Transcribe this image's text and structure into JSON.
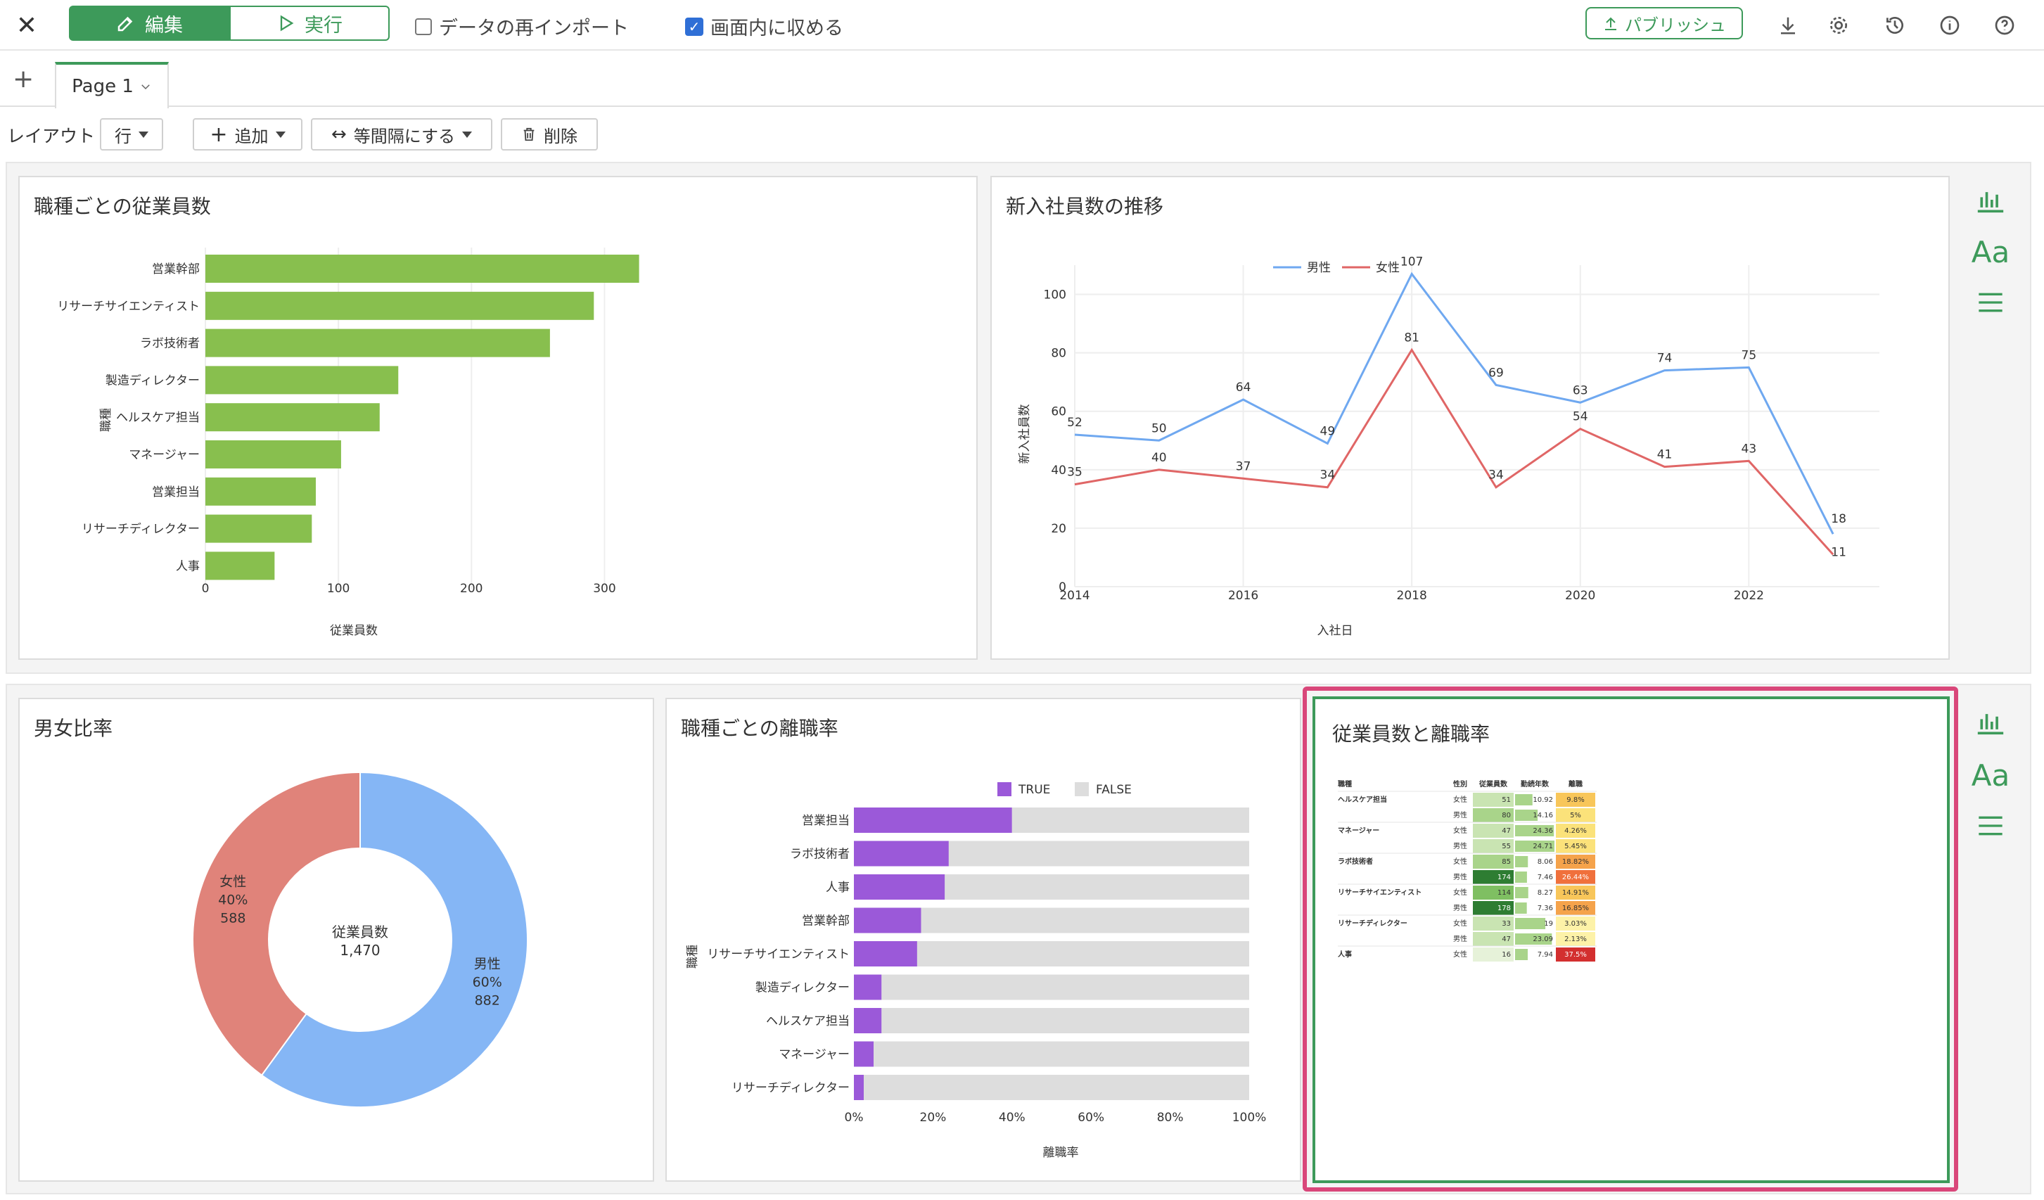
{
  "topbar": {
    "edit_label": "編集",
    "run_label": "実行",
    "reimport_label": "データの再インポート",
    "fit_label": "画面内に収める",
    "publish_label": "パブリッシュ"
  },
  "tabs": {
    "add": "+",
    "page1": "Page 1"
  },
  "layoutbar": {
    "layout_label": "レイアウト",
    "row_label": "行",
    "add_label": "追加",
    "equal_label": "等間隔にする",
    "delete_label": "削除"
  },
  "panels": {
    "p1_title": "職種ごとの従業員数",
    "p2_title": "新入社員数の推移",
    "p3_title": "男女比率",
    "p4_title": "職種ごとの離職率",
    "p5_title": "従業員数と離職率"
  },
  "sidebar": {
    "font_icon_label": "Aa"
  },
  "colors": {
    "green": "#3d9a5a",
    "bar_green": "#88bf4e",
    "male": "#6fa8f0",
    "female": "#e06666",
    "donut_male": "#85b6f5",
    "donut_female": "#e0837a",
    "purple": "#9b59d9",
    "gray": "#dddddd",
    "highlight": "#d9477a"
  },
  "chart_data": [
    {
      "type": "bar",
      "orientation": "horizontal",
      "title": "職種ごとの従業員数",
      "xlabel": "従業員数",
      "ylabel": "職種",
      "categories": [
        "営業幹部",
        "リサーチサイエンティスト",
        "ラボ技術者",
        "製造ディレクター",
        "ヘルスケア担当",
        "マネージャー",
        "営業担当",
        "リサーチディレクター",
        "人事"
      ],
      "values": [
        326,
        292,
        259,
        145,
        131,
        102,
        83,
        80,
        52
      ],
      "xlim": [
        0,
        350
      ],
      "xticks": [
        "0",
        "100",
        "200",
        "300"
      ]
    },
    {
      "type": "line",
      "title": "新入社員数の推移",
      "xlabel": "入社日",
      "ylabel": "新入社員数",
      "x": [
        2014,
        2015,
        2016,
        2017,
        2018,
        2019,
        2020,
        2021,
        2022,
        2023
      ],
      "xticks": [
        "2014",
        "2016",
        "2018",
        "2020",
        "2022"
      ],
      "yticks": [
        "0",
        "20",
        "40",
        "60",
        "80",
        "100"
      ],
      "ylim": [
        0,
        110
      ],
      "legend_position": "top",
      "series": [
        {
          "name": "男性",
          "values": [
            52,
            50,
            64,
            49,
            107,
            69,
            63,
            74,
            75,
            18
          ],
          "labels": [
            "52",
            "50",
            "64",
            "49",
            "107",
            "69",
            "63",
            "74",
            "75",
            "18"
          ]
        },
        {
          "name": "女性",
          "values": [
            35,
            40,
            37,
            34,
            81,
            34,
            54,
            41,
            43,
            11
          ],
          "labels": [
            "35",
            "40",
            "37",
            "34",
            "81",
            "34",
            "54",
            "41",
            "43",
            "11"
          ]
        }
      ]
    },
    {
      "type": "pie",
      "title": "男女比率",
      "center_label": "従業員数",
      "center_value": "1,470",
      "slices": [
        {
          "name": "男性",
          "percent": "60%",
          "value": 882
        },
        {
          "name": "女性",
          "percent": "40%",
          "value": 588
        }
      ]
    },
    {
      "type": "bar",
      "orientation": "horizontal",
      "stacked": true,
      "title": "職種ごとの離職率",
      "xlabel": "離職率",
      "ylabel": "職種",
      "categories": [
        "営業担当",
        "ラボ技術者",
        "人事",
        "営業幹部",
        "リサーチサイエンティスト",
        "製造ディレクター",
        "ヘルスケア担当",
        "マネージャー",
        "リサーチディレクター"
      ],
      "series": [
        {
          "name": "TRUE",
          "values": [
            0.4,
            0.24,
            0.23,
            0.17,
            0.16,
            0.07,
            0.07,
            0.05,
            0.025
          ]
        },
        {
          "name": "FALSE",
          "values": [
            0.6,
            0.76,
            0.77,
            0.83,
            0.84,
            0.93,
            0.93,
            0.95,
            0.975
          ]
        }
      ],
      "xticks": [
        "0%",
        "20%",
        "40%",
        "60%",
        "80%",
        "100%"
      ],
      "legend_position": "top"
    },
    {
      "type": "table",
      "title": "従業員数と離職率",
      "headers": [
        "職種",
        "性別",
        "従業員数",
        "勤続年数",
        "離職"
      ],
      "rows": [
        {
          "job": "ヘルスケア担当",
          "sex": "女性",
          "count": "51",
          "years": "10.92",
          "rate": "9.8%",
          "c": 51,
          "y": 10.92,
          "r": 9.8
        },
        {
          "job": "",
          "sex": "男性",
          "count": "80",
          "years": "14.16",
          "rate": "5%",
          "c": 80,
          "y": 14.16,
          "r": 5
        },
        {
          "job": "マネージャー",
          "sex": "女性",
          "count": "47",
          "years": "24.36",
          "rate": "4.26%",
          "c": 47,
          "y": 24.36,
          "r": 4.26
        },
        {
          "job": "",
          "sex": "男性",
          "count": "55",
          "years": "24.71",
          "rate": "5.45%",
          "c": 55,
          "y": 24.71,
          "r": 5.45
        },
        {
          "job": "ラボ技術者",
          "sex": "女性",
          "count": "85",
          "years": "8.06",
          "rate": "18.82%",
          "c": 85,
          "y": 8.06,
          "r": 18.82
        },
        {
          "job": "",
          "sex": "男性",
          "count": "174",
          "years": "7.46",
          "rate": "26.44%",
          "c": 174,
          "y": 7.46,
          "r": 26.44
        },
        {
          "job": "リサーチサイエンティスト",
          "sex": "女性",
          "count": "114",
          "years": "8.27",
          "rate": "14.91%",
          "c": 114,
          "y": 8.27,
          "r": 14.91
        },
        {
          "job": "",
          "sex": "男性",
          "count": "178",
          "years": "7.36",
          "rate": "16.85%",
          "c": 178,
          "y": 7.36,
          "r": 16.85
        },
        {
          "job": "リサーチディレクター",
          "sex": "女性",
          "count": "33",
          "years": "19",
          "rate": "3.03%",
          "c": 33,
          "y": 19,
          "r": 3.03
        },
        {
          "job": "",
          "sex": "男性",
          "count": "47",
          "years": "23.09",
          "rate": "2.13%",
          "c": 47,
          "y": 23.09,
          "r": 2.13
        },
        {
          "job": "人事",
          "sex": "女性",
          "count": "16",
          "years": "7.94",
          "rate": "37.5%",
          "c": 16,
          "y": 7.94,
          "r": 37.5
        }
      ]
    }
  ]
}
